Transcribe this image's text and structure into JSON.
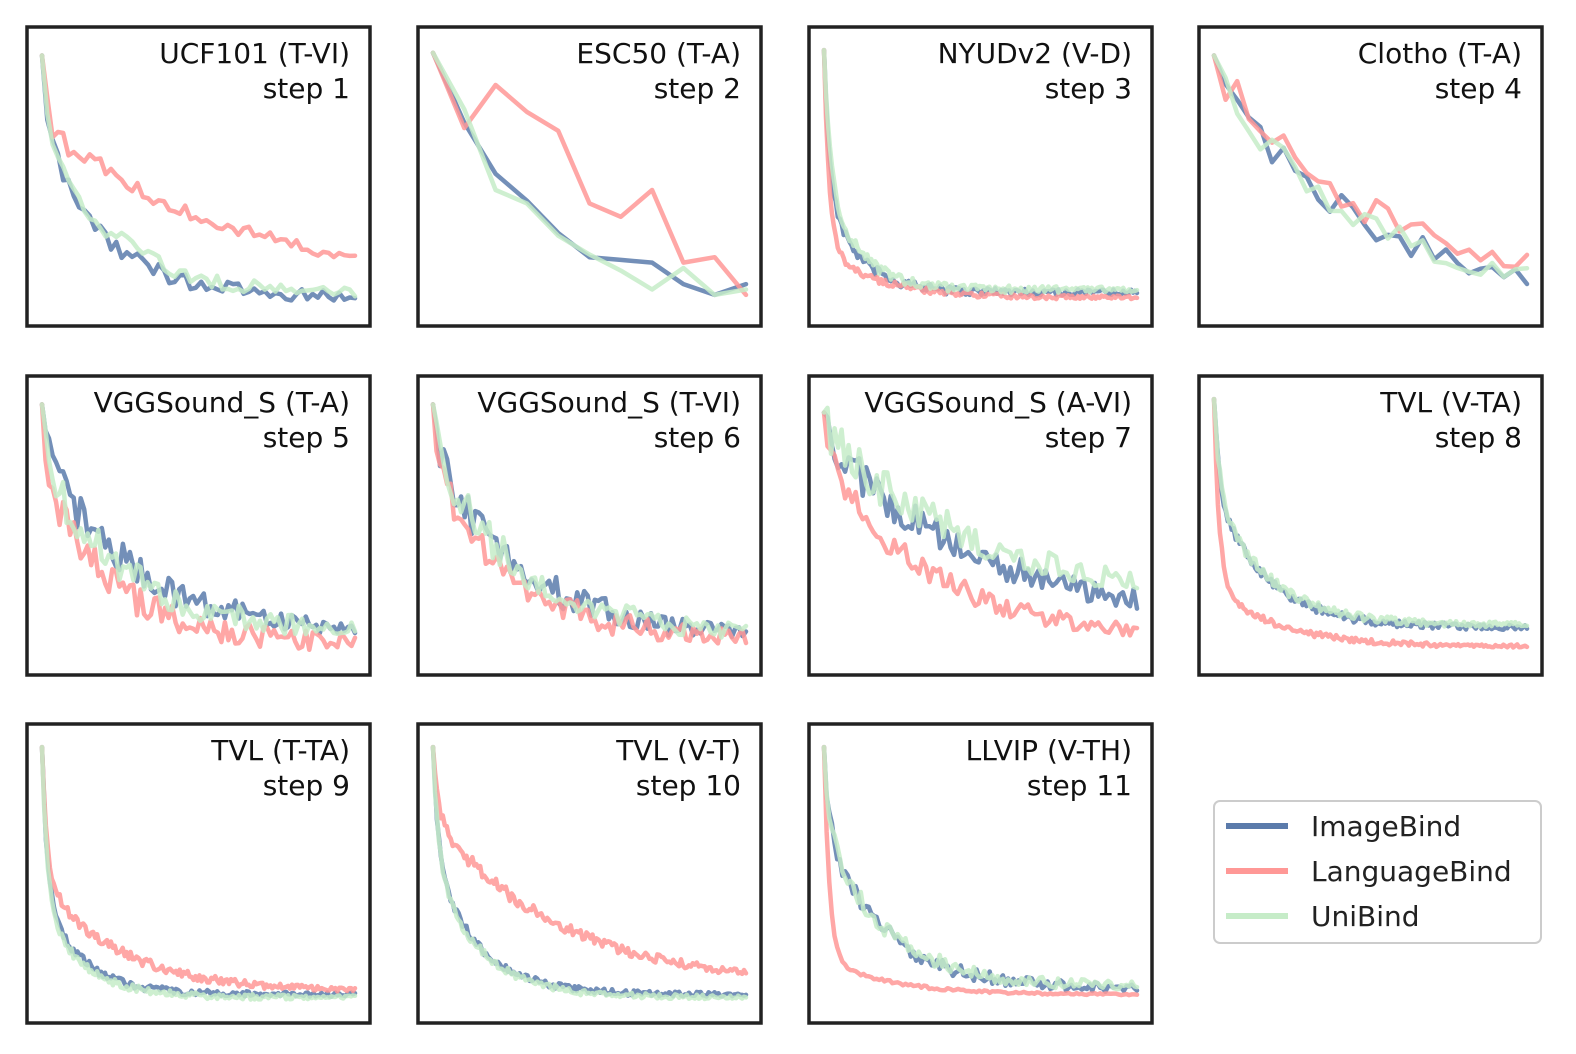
{
  "chart_data": {
    "type": "line",
    "series_names": [
      "ImageBind",
      "LanguageBind",
      "UniBind"
    ],
    "colors": {
      "ImageBind": "#5b7bab",
      "LanguageBind": "#ff9896",
      "UniBind": "#c6ecc8"
    },
    "legend": {
      "position": "bottom-right",
      "entries": [
        "ImageBind",
        "LanguageBind",
        "UniBind"
      ]
    },
    "axes": {
      "ticks": "none",
      "xlabel": "",
      "ylabel": "",
      "ylim": [
        0,
        1
      ]
    },
    "panels": [
      {
        "dataset": "UCF101 (T-VI)",
        "step_label": "step 1",
        "points": 60,
        "series": [
          {
            "name": "ImageBind",
            "start": 0.95,
            "end": 0.05,
            "decay": 5.0,
            "drop": 0.3,
            "noise": 0.03
          },
          {
            "name": "LanguageBind",
            "start": 0.95,
            "end": 0.04,
            "decay": 1.4,
            "drop": 0.3,
            "noise": 0.03
          },
          {
            "name": "UniBind",
            "start": 0.95,
            "end": 0.06,
            "decay": 4.5,
            "drop": 0.3,
            "noise": 0.03
          }
        ]
      },
      {
        "dataset": "ESC50 (T-A)",
        "step_label": "step 2",
        "points": 11,
        "series": [
          {
            "name": "ImageBind",
            "values": [
              0.96,
              0.7,
              0.51,
              0.41,
              0.29,
              0.2,
              0.19,
              0.18,
              0.1,
              0.06,
              0.1
            ]
          },
          {
            "name": "LanguageBind",
            "values": [
              0.96,
              0.68,
              0.84,
              0.74,
              0.67,
              0.4,
              0.35,
              0.45,
              0.18,
              0.2,
              0.06
            ]
          },
          {
            "name": "UniBind",
            "values": [
              0.96,
              0.75,
              0.45,
              0.4,
              0.28,
              0.21,
              0.15,
              0.08,
              0.16,
              0.06,
              0.08
            ]
          }
        ]
      },
      {
        "dataset": "NYUDv2 (V-D)",
        "step_label": "step 3",
        "points": 160,
        "series": [
          {
            "name": "ImageBind",
            "start": 0.97,
            "end": 0.07,
            "decay": 10.0,
            "drop": 0.55,
            "noise": 0.015
          },
          {
            "name": "LanguageBind",
            "start": 0.97,
            "end": 0.05,
            "decay": 6.0,
            "drop": 0.8,
            "noise": 0.01
          },
          {
            "name": "UniBind",
            "start": 0.97,
            "end": 0.08,
            "decay": 10.0,
            "drop": 0.5,
            "noise": 0.015
          }
        ]
      },
      {
        "dataset": "Clotho (T-A)",
        "step_label": "step 4",
        "points": 28,
        "series": [
          {
            "name": "ImageBind",
            "start": 0.95,
            "end": 0.03,
            "decay": 2.2,
            "drop": 0.05,
            "noise": 0.05
          },
          {
            "name": "LanguageBind",
            "start": 0.95,
            "end": 0.06,
            "decay": 2.0,
            "drop": 0.05,
            "noise": 0.06
          },
          {
            "name": "UniBind",
            "start": 0.95,
            "end": 0.05,
            "decay": 2.3,
            "drop": 0.05,
            "noise": 0.05
          }
        ]
      },
      {
        "dataset": "VGGSound_S (T-A)",
        "step_label": "step 5",
        "points": 90,
        "series": [
          {
            "name": "ImageBind",
            "start": 0.95,
            "end": 0.1,
            "decay": 3.5,
            "drop": 0.2,
            "noise": 0.05
          },
          {
            "name": "LanguageBind",
            "start": 0.95,
            "end": 0.06,
            "decay": 4.5,
            "drop": 0.3,
            "noise": 0.05
          },
          {
            "name": "UniBind",
            "start": 0.95,
            "end": 0.1,
            "decay": 3.8,
            "drop": 0.25,
            "noise": 0.05
          }
        ]
      },
      {
        "dataset": "VGGSound_S (T-VI)",
        "step_label": "step 6",
        "points": 90,
        "series": [
          {
            "name": "ImageBind",
            "start": 0.95,
            "end": 0.08,
            "decay": 3.5,
            "drop": 0.2,
            "noise": 0.05
          },
          {
            "name": "LanguageBind",
            "start": 0.95,
            "end": 0.07,
            "decay": 4.0,
            "drop": 0.25,
            "noise": 0.05
          },
          {
            "name": "UniBind",
            "start": 0.95,
            "end": 0.09,
            "decay": 3.6,
            "drop": 0.2,
            "noise": 0.05
          }
        ]
      },
      {
        "dataset": "VGGSound_S (A-VI)",
        "step_label": "step 7",
        "points": 90,
        "series": [
          {
            "name": "ImageBind",
            "start": 0.92,
            "end": 0.15,
            "decay": 2.2,
            "drop": 0.1,
            "noise": 0.06
          },
          {
            "name": "LanguageBind",
            "start": 0.92,
            "end": 0.08,
            "decay": 3.0,
            "drop": 0.2,
            "noise": 0.04
          },
          {
            "name": "UniBind",
            "start": 0.92,
            "end": 0.2,
            "decay": 2.0,
            "drop": 0.1,
            "noise": 0.06
          }
        ]
      },
      {
        "dataset": "TVL (V-TA)",
        "step_label": "step 8",
        "points": 160,
        "series": [
          {
            "name": "ImageBind",
            "start": 0.97,
            "end": 0.12,
            "decay": 6.0,
            "drop": 0.4,
            "noise": 0.015
          },
          {
            "name": "LanguageBind",
            "start": 0.97,
            "end": 0.05,
            "decay": 5.0,
            "drop": 0.75,
            "noise": 0.01
          },
          {
            "name": "UniBind",
            "start": 0.97,
            "end": 0.13,
            "decay": 6.0,
            "drop": 0.4,
            "noise": 0.015
          }
        ]
      },
      {
        "dataset": "TVL (T-TA)",
        "step_label": "step 9",
        "points": 160,
        "series": [
          {
            "name": "ImageBind",
            "start": 0.97,
            "end": 0.05,
            "decay": 8.0,
            "drop": 0.6,
            "noise": 0.012
          },
          {
            "name": "LanguageBind",
            "start": 0.97,
            "end": 0.06,
            "decay": 4.0,
            "drop": 0.55,
            "noise": 0.015
          },
          {
            "name": "UniBind",
            "start": 0.97,
            "end": 0.04,
            "decay": 8.0,
            "drop": 0.62,
            "noise": 0.012
          }
        ]
      },
      {
        "dataset": "TVL (V-T)",
        "step_label": "step 10",
        "points": 160,
        "series": [
          {
            "name": "ImageBind",
            "start": 0.97,
            "end": 0.05,
            "decay": 7.0,
            "drop": 0.45,
            "noise": 0.012
          },
          {
            "name": "LanguageBind",
            "start": 0.97,
            "end": 0.08,
            "decay": 2.5,
            "drop": 0.3,
            "noise": 0.02
          },
          {
            "name": "UniBind",
            "start": 0.97,
            "end": 0.04,
            "decay": 7.0,
            "drop": 0.45,
            "noise": 0.012
          }
        ]
      },
      {
        "dataset": "LLVIP (V-TH)",
        "step_label": "step 11",
        "points": 120,
        "series": [
          {
            "name": "ImageBind",
            "start": 0.97,
            "end": 0.07,
            "decay": 5.0,
            "drop": 0.35,
            "noise": 0.025
          },
          {
            "name": "LanguageBind",
            "start": 0.97,
            "end": 0.05,
            "decay": 5.0,
            "drop": 0.85,
            "noise": 0.005
          },
          {
            "name": "UniBind",
            "start": 0.97,
            "end": 0.08,
            "decay": 5.0,
            "drop": 0.35,
            "noise": 0.025
          }
        ]
      }
    ]
  }
}
